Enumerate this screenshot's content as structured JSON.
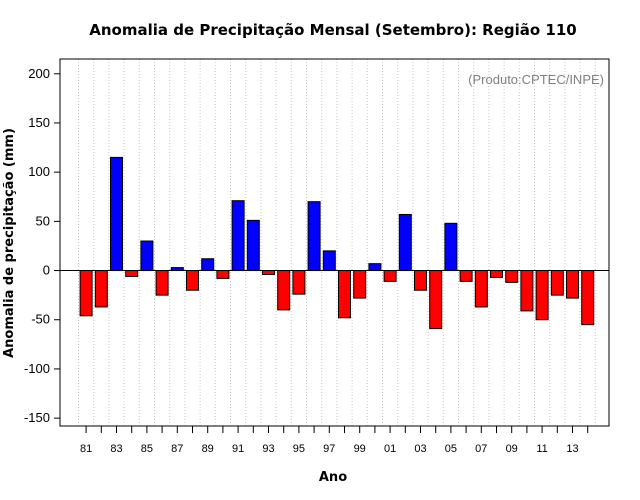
{
  "chart_data": {
    "type": "bar",
    "title": "Anomalia de Precipitação Mensal (Setembro): Região 110",
    "xlabel": "Ano",
    "ylabel": "Anomalia de precipitação (mm)",
    "source_note": "(Produto:CPTEC/INPE)",
    "ylim": [
      -158,
      215
    ],
    "yticks": [
      -150,
      -100,
      -50,
      0,
      50,
      100,
      150,
      200
    ],
    "ytick_labels": [
      "-150",
      "-100",
      "-50",
      "0",
      "50",
      "100",
      "150",
      "200"
    ],
    "xtick_labels": [
      "81",
      "83",
      "85",
      "87",
      "89",
      "91",
      "93",
      "95",
      "97",
      "99",
      "01",
      "03",
      "05",
      "07",
      "09",
      "11",
      "13"
    ],
    "grid": "vertical-dotted",
    "legend": "none",
    "colors": {
      "positive": "#0000FF",
      "negative": "#FF0000",
      "zero_line": "#000000",
      "grid": "#C8C8C8"
    },
    "categories": [
      "1981",
      "1982",
      "1983",
      "1984",
      "1985",
      "1986",
      "1987",
      "1988",
      "1989",
      "1990",
      "1991",
      "1992",
      "1993",
      "1994",
      "1995",
      "1996",
      "1997",
      "1998",
      "1999",
      "2000",
      "2001",
      "2002",
      "2003",
      "2004",
      "2005",
      "2006",
      "2007",
      "2008",
      "2009",
      "2010",
      "2011",
      "2012",
      "2013",
      "2014"
    ],
    "values": [
      -46,
      -37,
      115,
      -6,
      30,
      -25,
      3,
      -20,
      12,
      -8,
      71,
      51,
      -4,
      -40,
      -24,
      70,
      20,
      -48,
      -28,
      7,
      -11,
      57,
      -20,
      -59,
      48,
      -11,
      -37,
      -7,
      -12,
      -41,
      -50,
      -25,
      -28,
      -55
    ]
  }
}
